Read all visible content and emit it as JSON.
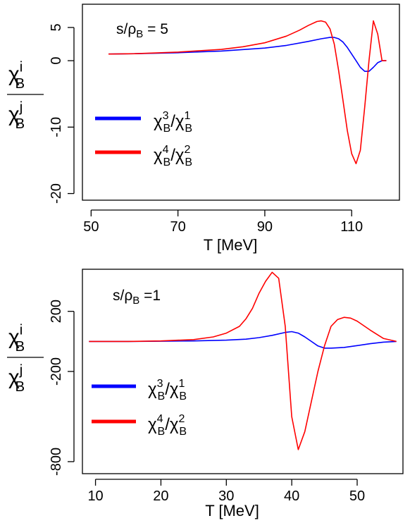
{
  "chart_data": [
    {
      "type": "line",
      "annotation": "s/ρB = 5",
      "xlabel": "T [MeV]",
      "ylabel": {
        "numer": "χBi",
        "denom": "χBj"
      },
      "xlim": [
        48,
        121
      ],
      "ylim": [
        -21,
        8.5
      ],
      "xticks": [
        50,
        70,
        90,
        110
      ],
      "xtick_labels": [
        "50",
        "70",
        "90",
        "110"
      ],
      "yticks": [
        5,
        0,
        -10,
        -20
      ],
      "ytick_labels": [
        "5",
        "0",
        "-10",
        "-20"
      ],
      "grid": false,
      "legend": {
        "position": "left",
        "entries": [
          "χB3/χB1",
          "χB4/χB2"
        ]
      },
      "series": [
        {
          "name": "χB3/χB1",
          "color": "#0000ff",
          "x": [
            54,
            60,
            70,
            80,
            90,
            95,
            100,
            103,
            105,
            106,
            107,
            108,
            109,
            110,
            111,
            112,
            113,
            114,
            115,
            116,
            117,
            118
          ],
          "y": [
            1.0,
            1.05,
            1.2,
            1.45,
            1.9,
            2.3,
            2.9,
            3.3,
            3.5,
            3.5,
            3.3,
            2.8,
            2.0,
            1.0,
            0.0,
            -1.0,
            -1.6,
            -1.6,
            -1.0,
            -0.3,
            0.0,
            0.0
          ]
        },
        {
          "name": "χB4/χB2",
          "color": "#ff0000",
          "x": [
            54,
            60,
            70,
            80,
            85,
            90,
            95,
            98,
            100,
            102,
            103,
            104,
            105,
            106,
            107,
            108,
            109,
            110,
            111,
            112,
            113,
            114,
            115,
            116,
            117,
            118
          ],
          "y": [
            1.0,
            1.05,
            1.3,
            1.7,
            2.1,
            2.7,
            3.7,
            4.6,
            5.3,
            5.9,
            6.0,
            5.8,
            4.8,
            2.5,
            -1.5,
            -6.0,
            -10.5,
            -14.0,
            -15.5,
            -13.5,
            -7.0,
            0.0,
            6.0,
            4.0,
            0.0,
            0.0
          ]
        }
      ]
    },
    {
      "type": "line",
      "annotation": "s/ρB =1",
      "xlabel": "T [MeV]",
      "ylabel": {
        "numer": "χBi",
        "denom": "χBj"
      },
      "xlim": [
        8,
        57
      ],
      "ylim": [
        -880,
        480
      ],
      "xticks": [
        10,
        20,
        30,
        40,
        50
      ],
      "xtick_labels": [
        "10",
        "20",
        "30",
        "40",
        "50"
      ],
      "yticks": [
        200,
        -200,
        -800
      ],
      "ytick_labels": [
        "200",
        "-200",
        "-800"
      ],
      "grid": false,
      "legend": {
        "position": "left",
        "entries": [
          "χB3/χB1",
          "χB4/χB2"
        ]
      },
      "series": [
        {
          "name": "χB3/χB1",
          "color": "#0000ff",
          "x": [
            9,
            15,
            20,
            25,
            30,
            33,
            35,
            37,
            39,
            40,
            41,
            42,
            43,
            44,
            45,
            46,
            48,
            50,
            52,
            54,
            56
          ],
          "y": [
            0,
            0,
            1,
            3,
            8,
            15,
            25,
            40,
            60,
            65,
            55,
            30,
            0,
            -30,
            -45,
            -45,
            -40,
            -28,
            -15,
            -5,
            0
          ],
          "values_note": ""
        },
        {
          "name": "χB4/χB2",
          "color": "#ff0000",
          "x": [
            9,
            15,
            20,
            25,
            28,
            30,
            32,
            33,
            34,
            35,
            36,
            37,
            38,
            39,
            40,
            41,
            42,
            43,
            44,
            45,
            46,
            47,
            48,
            49,
            50,
            52,
            54,
            56
          ],
          "y": [
            0,
            0,
            3,
            12,
            30,
            55,
            100,
            150,
            220,
            320,
            400,
            460,
            420,
            100,
            -500,
            -720,
            -600,
            -400,
            -200,
            -30,
            100,
            145,
            160,
            155,
            135,
            75,
            20,
            0
          ]
        }
      ]
    }
  ]
}
